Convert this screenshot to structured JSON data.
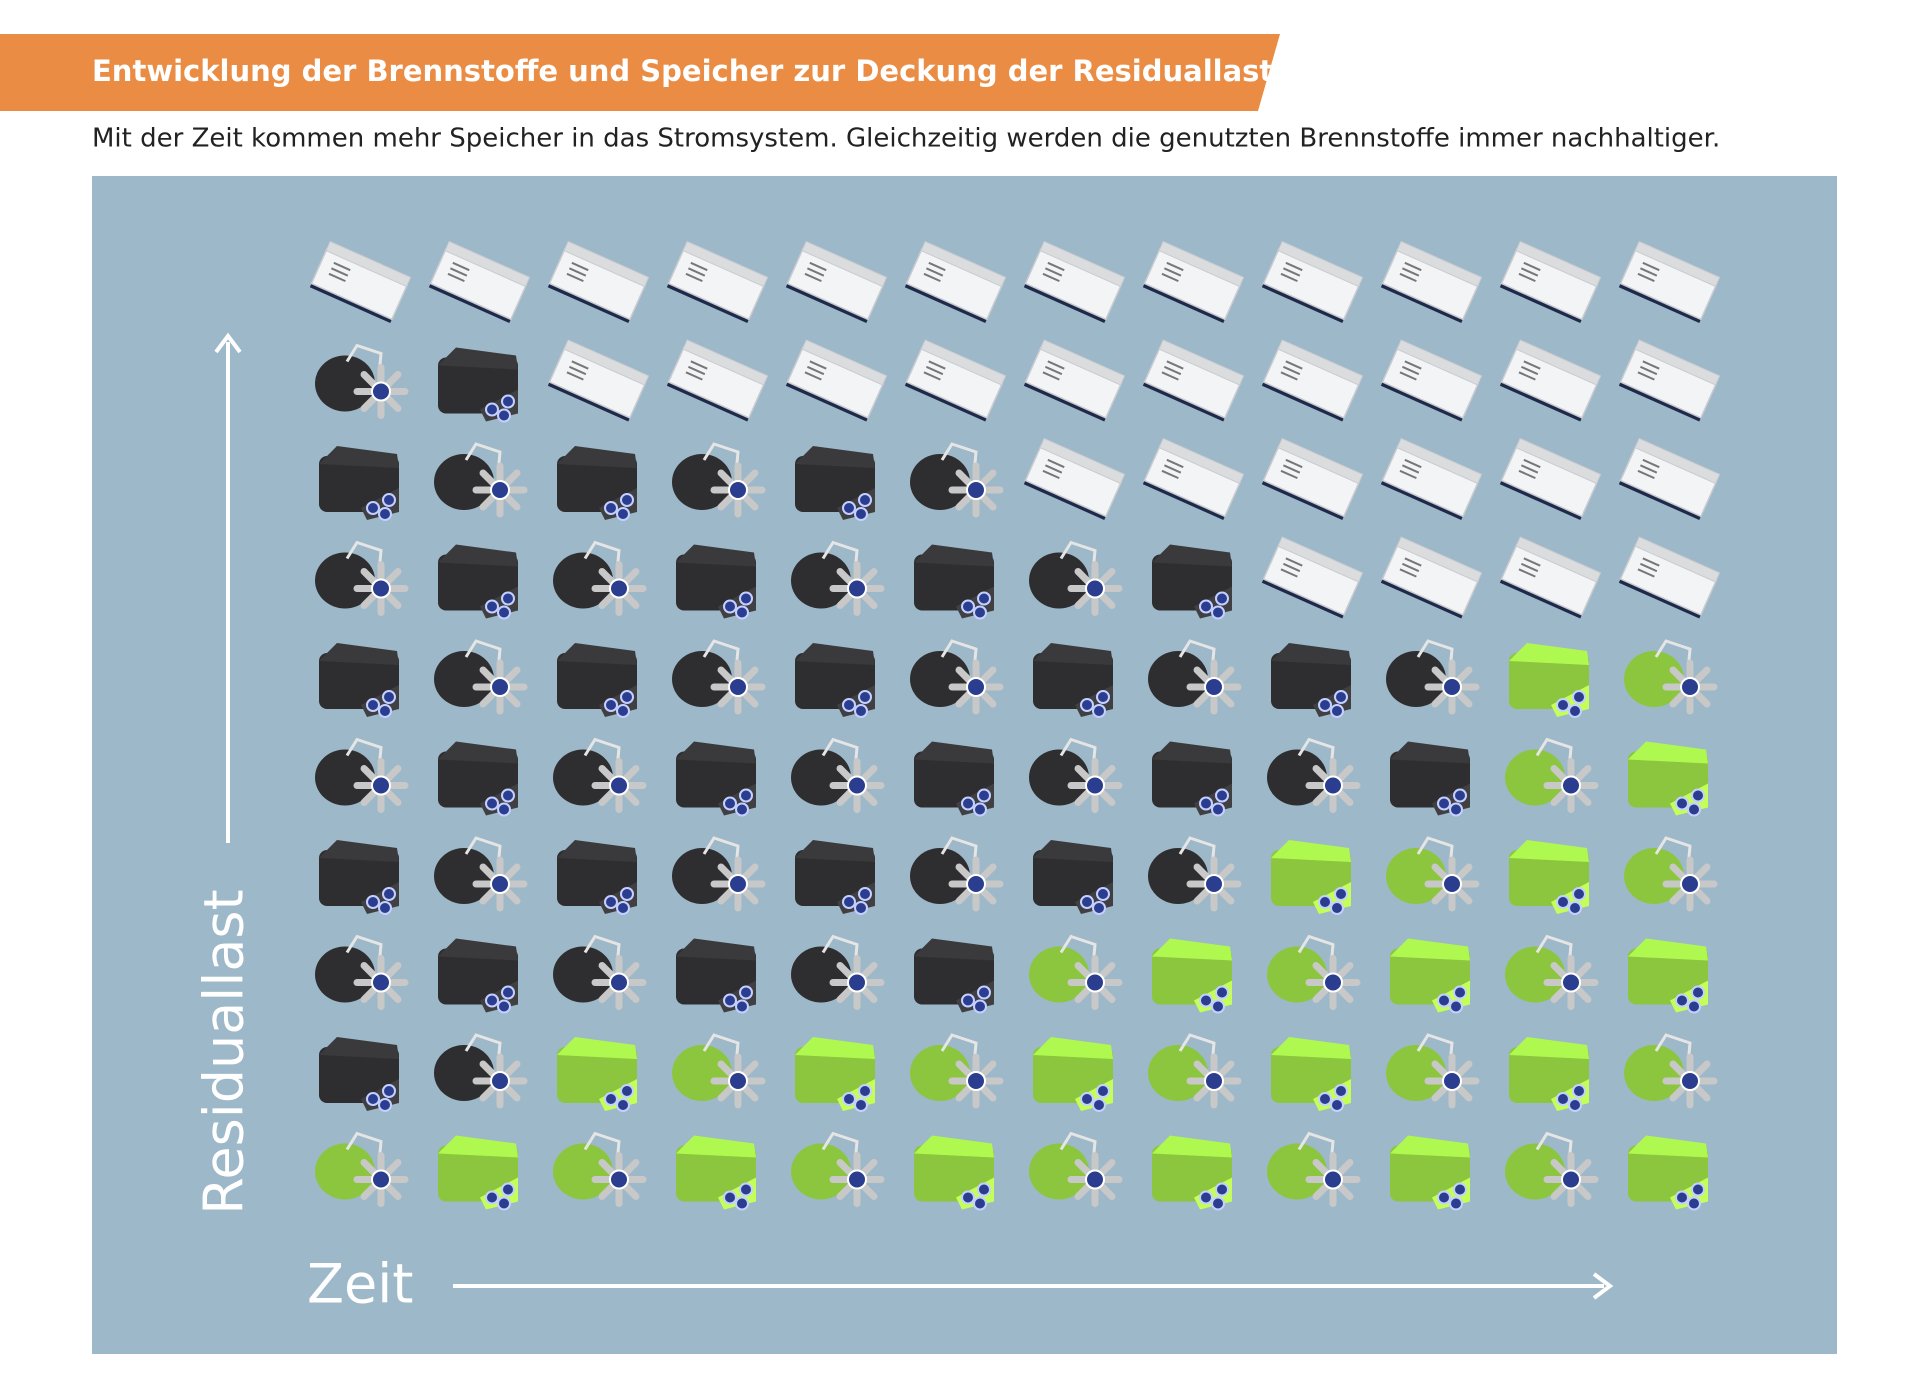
{
  "chart_data": {
    "type": "pictogram",
    "title": "Entwicklung der Brennstoffe und Speicher zur Deckung der Residuallast",
    "subtitle": "Mit der Zeit kommen mehr Speicher in das Stromsystem. Gleichzeitig werden die genutzten Brennstoffe immer nachhaltiger.",
    "y_label": "Residuallast",
    "x_label": "Zeit",
    "series": [
      {
        "color": "#f3f4f6",
        "values": [
          1,
          1,
          2,
          2,
          2,
          2,
          3,
          3,
          4,
          4,
          4,
          4
        ]
      },
      {
        "color": "#2e2e30",
        "values": [
          8,
          8,
          6,
          6,
          6,
          6,
          4,
          4,
          2,
          2,
          0,
          0
        ]
      },
      {
        "color": "#8cc63f",
        "values": [
          1,
          1,
          2,
          2,
          2,
          2,
          3,
          3,
          4,
          4,
          6,
          6
        ]
      }
    ]
  }
}
